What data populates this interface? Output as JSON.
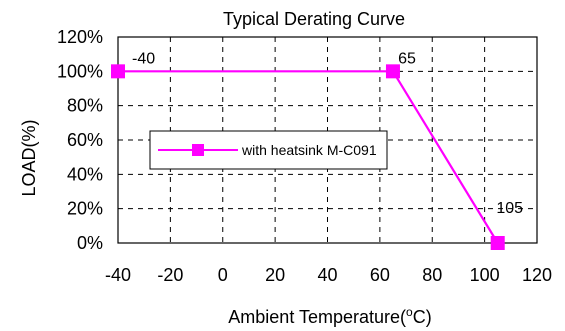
{
  "chart_data": {
    "type": "line",
    "title": "Typical Derating Curve",
    "xlabel": {
      "prefix": "Ambient Temperature(",
      "superscript": "o",
      "suffix": "C)"
    },
    "ylabel": "LOAD(%)",
    "xlim": [
      -40,
      120
    ],
    "ylim": [
      0,
      120
    ],
    "xticks": [
      -40,
      -20,
      0,
      20,
      40,
      60,
      80,
      100,
      120
    ],
    "xtick_labels": [
      "-40",
      "-20",
      "0",
      "20",
      "40",
      "60",
      "80",
      "100",
      "120"
    ],
    "yticks": [
      0,
      20,
      40,
      60,
      80,
      100,
      120
    ],
    "ytick_labels": [
      "0%",
      "20%",
      "40%",
      "60%",
      "80%",
      "100%",
      "120%"
    ],
    "grid": true,
    "grid_style": "dashed",
    "legend_position": "middle-left",
    "series": [
      {
        "name": "with heatsink M-C091",
        "color": "#ff00ff",
        "marker": "square",
        "x": [
          -40,
          65,
          105
        ],
        "y": [
          100,
          100,
          0
        ]
      }
    ],
    "annotations": [
      {
        "text": "-40",
        "x": -40,
        "y": 100
      },
      {
        "text": "65",
        "x": 65,
        "y": 100
      },
      {
        "text": "105",
        "x": 105,
        "y": 0
      }
    ]
  }
}
